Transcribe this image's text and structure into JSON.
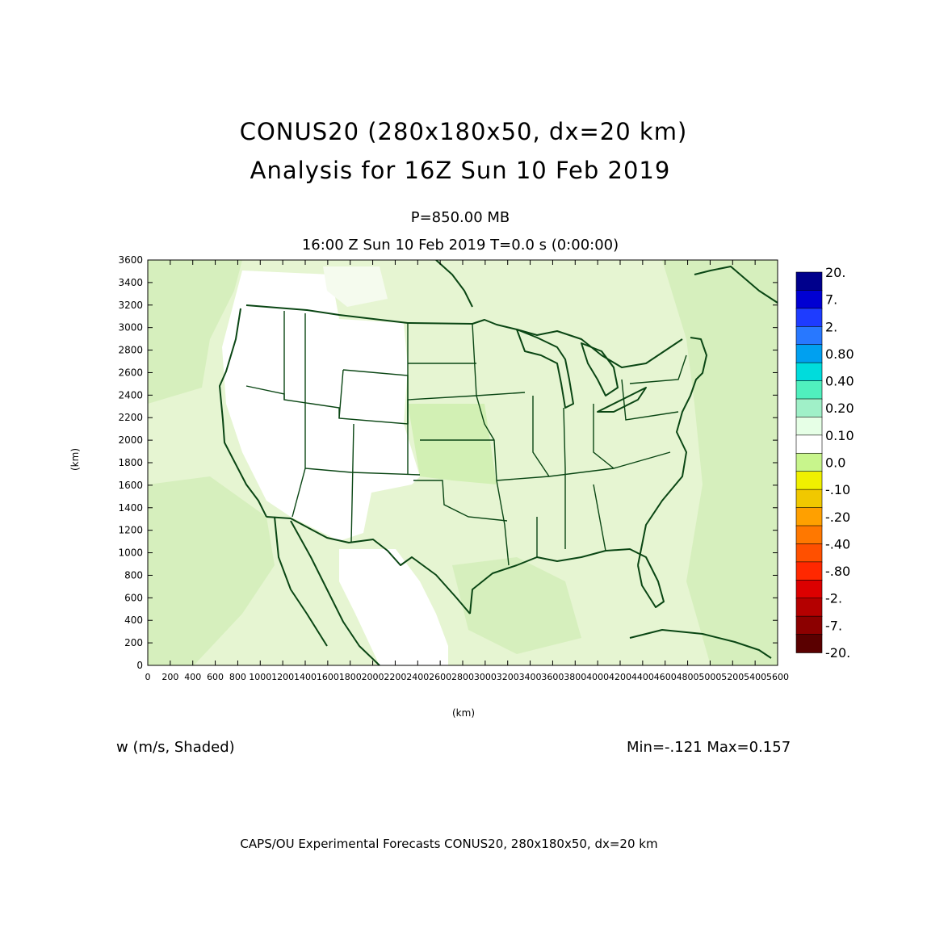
{
  "title": "CONUS20 (280x180x50, dx=20 km)",
  "subtitle": "Analysis for 16Z Sun 10 Feb 2019",
  "level": "P=850.00 MB",
  "valid_time": "16:00 Z Sun 10 Feb 2019    T=0.0 s (0:00:00)",
  "variable": "w (m/s, Shaded)",
  "minmax": "Min=-.121 Max=0.157",
  "footer": "CAPS/OU Experimental Forecasts  CONUS20, 280x180x50, dx=20 km",
  "axes": {
    "xlabel": "(km)",
    "ylabel": "(km)",
    "x_ticks": [
      "0",
      "200",
      "400",
      "600",
      "800",
      "1000",
      "1200",
      "1400",
      "1600",
      "1800",
      "2000",
      "2200",
      "2400",
      "2600",
      "2800",
      "3000",
      "3200",
      "3400",
      "3600",
      "3800",
      "4000",
      "4200",
      "4400",
      "4600",
      "4800",
      "5000",
      "5200",
      "5400",
      "5600"
    ],
    "y_ticks": [
      "0",
      "200",
      "400",
      "600",
      "800",
      "1000",
      "1200",
      "1400",
      "1600",
      "1800",
      "2000",
      "2200",
      "2400",
      "2600",
      "2800",
      "3000",
      "3200",
      "3400",
      "3600"
    ],
    "xlim": [
      0,
      5600
    ],
    "ylim": [
      0,
      3600
    ]
  },
  "colorbar": {
    "labels": [
      "20.",
      "7.",
      "2.",
      "0.80",
      "0.40",
      "0.20",
      "0.10",
      "0.0",
      "-.10",
      "-.20",
      "-.40",
      "-.80",
      "-2.",
      "-7.",
      "-20."
    ],
    "colors": [
      "#00008c",
      "#0000d2",
      "#1e3cff",
      "#2878ff",
      "#00a0f0",
      "#00dcdc",
      "#50f0be",
      "#a0f0c8",
      "#e6ffe6",
      "#ffffff",
      "#c8f58c",
      "#f0f000",
      "#f0c800",
      "#ffa000",
      "#ff7800",
      "#ff5000",
      "#ff2800",
      "#dc0000",
      "#b40000",
      "#8c0000",
      "#5a0000"
    ]
  },
  "colors": {
    "field_light": "#e6f5d2",
    "field_mid": "#d2f0b4",
    "outline": "#0a4614",
    "frame": "#000000"
  }
}
